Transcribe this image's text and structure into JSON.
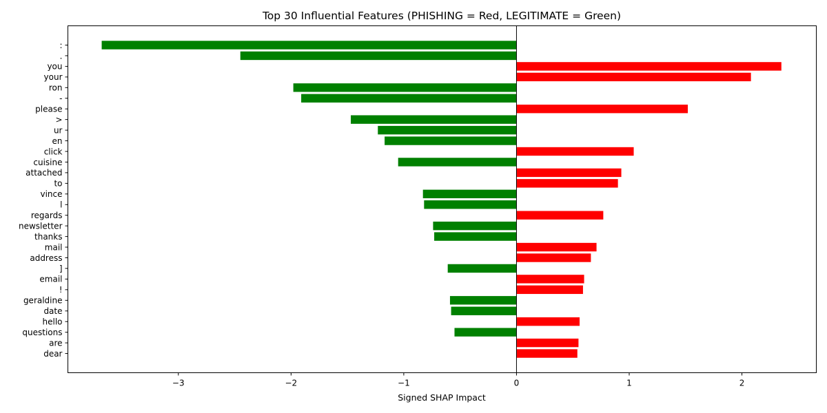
{
  "chart_data": {
    "type": "bar",
    "orientation": "horizontal",
    "title": "Top 30 Influential Features (PHISHING = Red, LEGITIMATE = Green)",
    "xlabel": "Signed SHAP Impact",
    "ylabel": "",
    "xlim": [
      -3.98,
      2.66
    ],
    "xticks": [
      -3,
      -2,
      -1,
      0,
      1,
      2
    ],
    "xtick_labels": [
      "−3",
      "−2",
      "−1",
      "0",
      "1",
      "2"
    ],
    "grid": false,
    "colors": {
      "positive": "#ff0000",
      "negative": "#008000"
    },
    "categories": [
      ":",
      ".",
      "you",
      "your",
      "ron",
      "-",
      "please",
      ">",
      "ur",
      "en",
      "click",
      "cuisine",
      "attached",
      "to",
      "vince",
      "l",
      "regards",
      "newsletter",
      "thanks",
      "mail",
      "address",
      "]",
      "email",
      "!",
      "geraldine",
      "date",
      "hello",
      "questions",
      "are",
      "dear"
    ],
    "values": [
      -3.68,
      -2.45,
      2.35,
      2.08,
      -1.98,
      -1.91,
      1.52,
      -1.47,
      -1.23,
      -1.17,
      1.04,
      -1.05,
      0.93,
      0.9,
      -0.83,
      -0.82,
      0.77,
      -0.74,
      -0.73,
      0.71,
      0.66,
      -0.61,
      0.6,
      0.59,
      -0.59,
      -0.58,
      0.56,
      -0.55,
      0.55,
      0.54
    ]
  }
}
